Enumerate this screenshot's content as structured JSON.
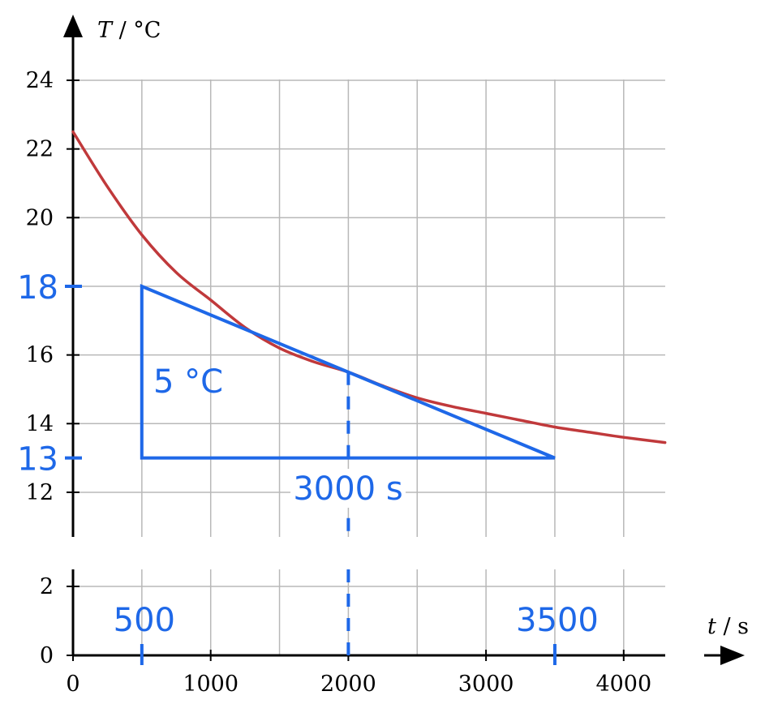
{
  "chart_data": {
    "type": "line",
    "x_label_var": "t",
    "x_label_unit": " / s",
    "y_label_var": "T",
    "y_label_unit": " / °C",
    "xlim": [
      0,
      4300
    ],
    "ylim_upper": [
      10.7,
      24.8
    ],
    "ylim_lower": [
      0,
      2.8
    ],
    "x_grid": [
      500,
      1000,
      1500,
      2000,
      2500,
      3000,
      3500,
      4000
    ],
    "y_grid_upper": [
      12,
      14,
      16,
      18,
      20,
      22,
      24
    ],
    "y_grid_lower": [
      2
    ],
    "x_ticks": [
      {
        "value": 0,
        "label": "0"
      },
      {
        "value": 1000,
        "label": "1000"
      },
      {
        "value": 2000,
        "label": "2000"
      },
      {
        "value": 3000,
        "label": "3000"
      },
      {
        "value": 4000,
        "label": "4000"
      }
    ],
    "y_ticks_upper": [
      {
        "value": 12,
        "label": "12"
      },
      {
        "value": 14,
        "label": "14"
      },
      {
        "value": 16,
        "label": "16"
      },
      {
        "value": 20,
        "label": "20"
      },
      {
        "value": 22,
        "label": "22"
      },
      {
        "value": 24,
        "label": "24"
      }
    ],
    "y_ticks_lower": [
      {
        "value": 0,
        "label": "0"
      },
      {
        "value": 2,
        "label": "2"
      }
    ],
    "series": [
      {
        "color": "#c0393b",
        "x": [
          0,
          250,
          500,
          750,
          1000,
          1250,
          1500,
          1750,
          2000,
          2250,
          2500,
          2750,
          3000,
          3250,
          3500,
          3750,
          4000,
          4300
        ],
        "y": [
          22.5,
          20.9,
          19.5,
          18.4,
          17.6,
          16.8,
          16.2,
          15.8,
          15.5,
          15.1,
          14.75,
          14.5,
          14.3,
          14.1,
          13.9,
          13.75,
          13.6,
          13.45
        ]
      }
    ],
    "annotations": {
      "color": "#1e68e8",
      "triangle": [
        [
          500,
          18
        ],
        [
          500,
          13
        ],
        [
          3500,
          13
        ]
      ],
      "tangent_point": [
        2000,
        15.5
      ],
      "highlight_y_ticks": [
        {
          "value": 18,
          "label": "18"
        },
        {
          "value": 13,
          "label": "13"
        }
      ],
      "highlight_x_ticks": [
        {
          "value": 500,
          "label": "500"
        },
        {
          "value": 3500,
          "label": "3500"
        }
      ],
      "vertical_label": "5 °C",
      "horizontal_label": "3000 s"
    }
  }
}
